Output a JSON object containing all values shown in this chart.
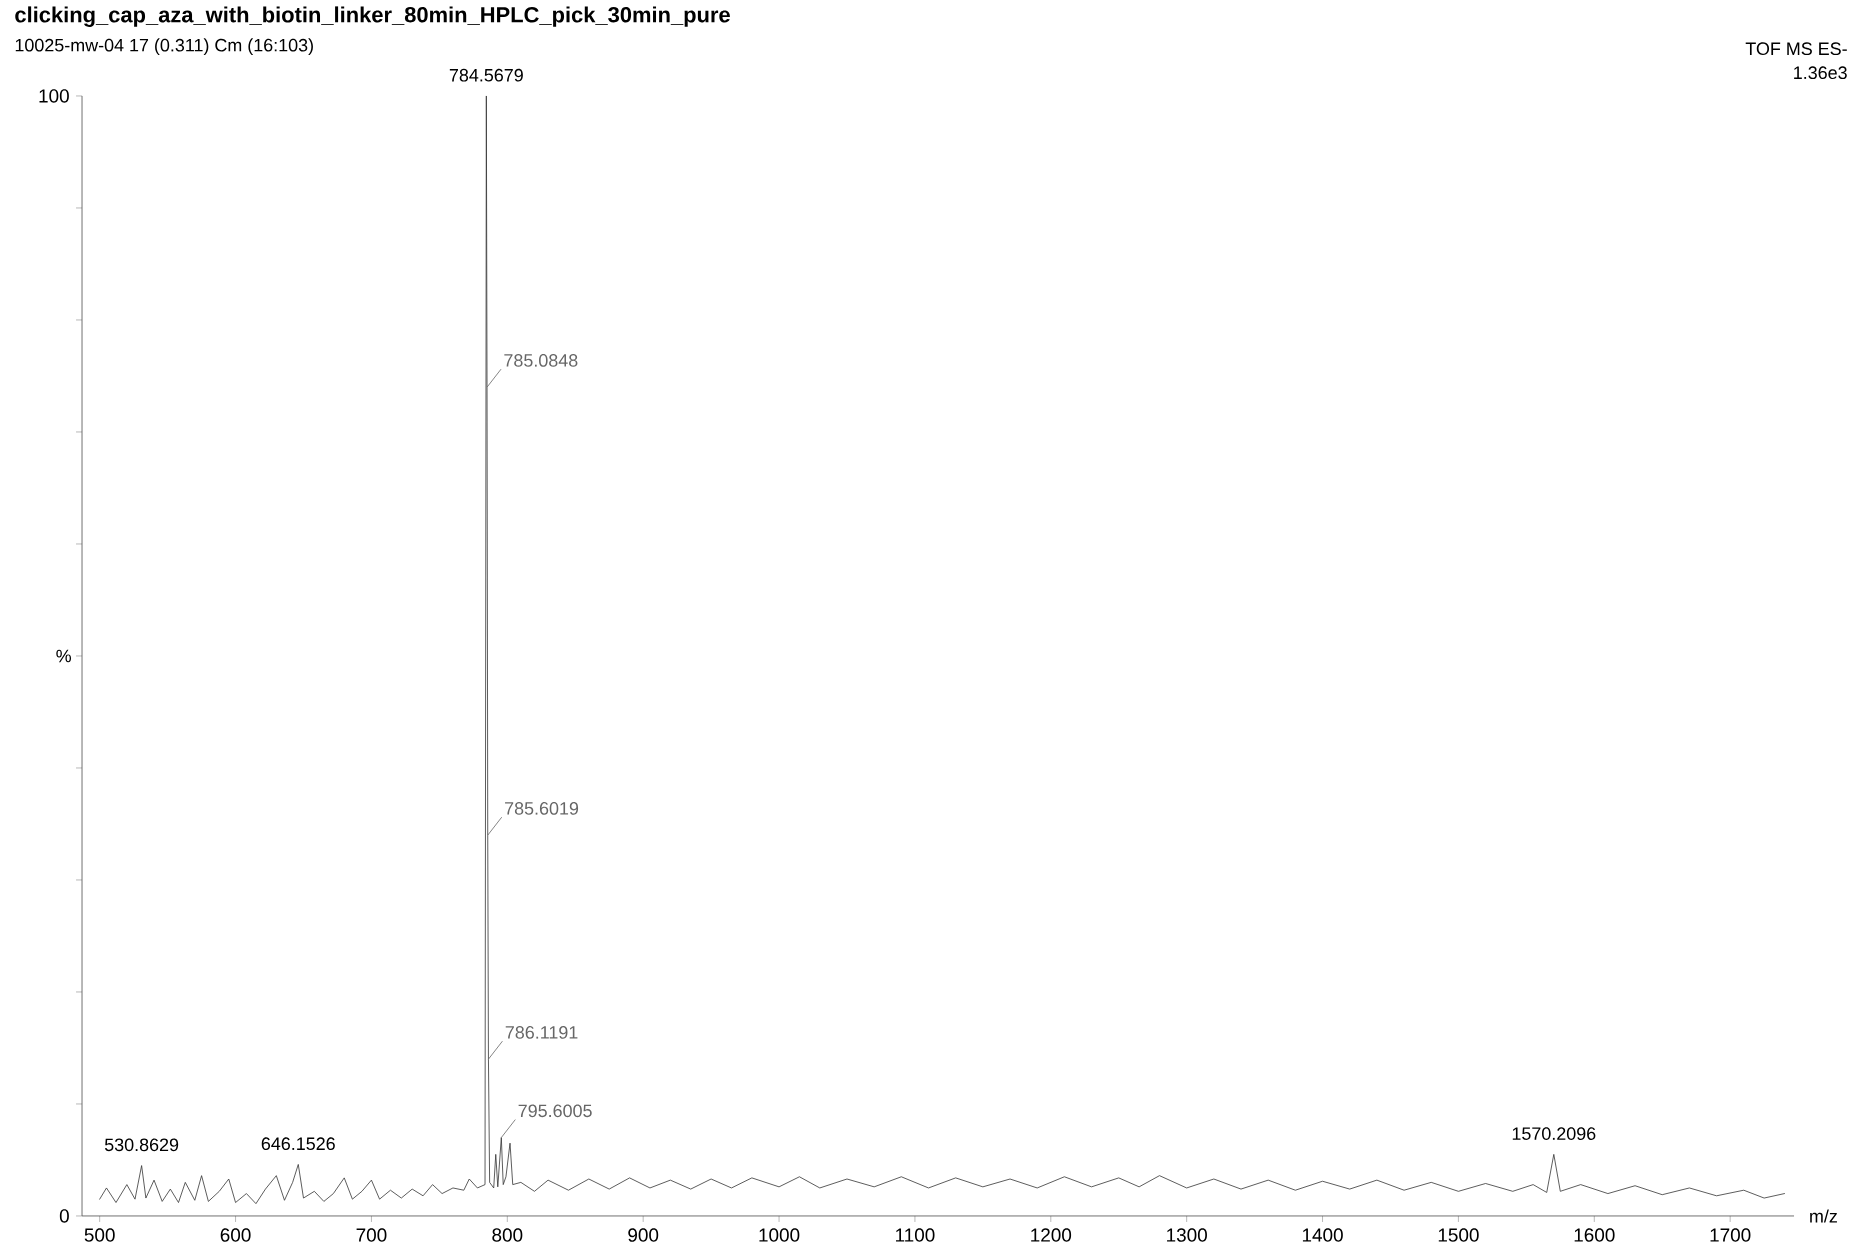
{
  "chart_data": {
    "type": "line",
    "title": "clicking_cap_aza_with_biotin_linker_80min_HPLC_pick_30min_pure",
    "subtitle": "10025-mw-04 17 (0.311) Cm (16:103)",
    "xlabel": "m/z",
    "ylabel": "%",
    "annotations": [
      "TOF MS ES-",
      "1.36e3",
      {
        "text": "784.5679",
        "x": 784.5679,
        "y": 100
      },
      {
        "text": "785.0848",
        "x": 785.0848,
        "y": 74
      },
      {
        "text": "785.6019",
        "x": 785.6019,
        "y": 34
      },
      {
        "text": "786.1191",
        "x": 786.1191,
        "y": 14
      },
      {
        "text": "795.6005",
        "x": 795.6005,
        "y": 7
      },
      {
        "text": "530.8629",
        "x": 530.8629,
        "y": 4.5
      },
      {
        "text": "646.1526",
        "x": 646.1526,
        "y": 4.6
      },
      {
        "text": "1570.2096",
        "x": 1570.2096,
        "y": 5.5
      }
    ],
    "series": [
      {
        "color": "#333333",
        "x": [
          500,
          505,
          512,
          520,
          526,
          530.8629,
          534,
          540,
          546,
          552,
          558,
          563,
          570,
          575,
          580,
          588,
          595,
          600,
          608,
          615,
          622,
          630,
          636,
          642,
          646.1526,
          650,
          658,
          665,
          672,
          680,
          686,
          693,
          700,
          706,
          714,
          722,
          730,
          738,
          745,
          752,
          760,
          768,
          772,
          778,
          783.6,
          784.5679,
          785.0848,
          785.6019,
          786.1191,
          787,
          790,
          791.5,
          793,
          795.6005,
          797,
          799,
          802,
          804,
          810,
          820,
          830,
          845,
          860,
          875,
          890,
          905,
          920,
          935,
          950,
          965,
          980,
          1000,
          1015,
          1030,
          1050,
          1070,
          1090,
          1110,
          1130,
          1150,
          1170,
          1190,
          1210,
          1230,
          1250,
          1265,
          1280,
          1300,
          1320,
          1340,
          1360,
          1380,
          1400,
          1420,
          1440,
          1460,
          1480,
          1500,
          1520,
          1540,
          1555,
          1565,
          1570.2096,
          1575,
          1590,
          1610,
          1630,
          1650,
          1670,
          1690,
          1710,
          1725,
          1740
        ],
        "values": [
          1.5,
          2.5,
          1.2,
          2.8,
          1.5,
          4.5,
          1.6,
          3.2,
          1.3,
          2.4,
          1.2,
          3.0,
          1.4,
          3.6,
          1.3,
          2.2,
          3.3,
          1.2,
          2.0,
          1.1,
          2.4,
          3.6,
          1.4,
          3.0,
          4.6,
          1.6,
          2.2,
          1.3,
          2.0,
          3.4,
          1.5,
          2.2,
          3.2,
          1.5,
          2.3,
          1.6,
          2.4,
          1.8,
          2.8,
          2.0,
          2.5,
          2.3,
          3.3,
          2.5,
          2.8,
          100,
          74,
          34,
          14,
          3,
          2.5,
          5.5,
          2.6,
          7,
          2.8,
          3.5,
          6.5,
          2.8,
          3.0,
          2.2,
          3.2,
          2.3,
          3.3,
          2.4,
          3.4,
          2.5,
          3.2,
          2.4,
          3.3,
          2.5,
          3.4,
          2.6,
          3.5,
          2.5,
          3.3,
          2.6,
          3.5,
          2.5,
          3.4,
          2.6,
          3.3,
          2.5,
          3.5,
          2.6,
          3.4,
          2.6,
          3.6,
          2.5,
          3.3,
          2.4,
          3.2,
          2.3,
          3.1,
          2.4,
          3.2,
          2.3,
          3.0,
          2.2,
          2.9,
          2.2,
          2.8,
          2.1,
          5.5,
          2.2,
          2.8,
          2.0,
          2.7,
          1.9,
          2.5,
          1.8,
          2.3,
          1.6,
          2.0
        ]
      }
    ],
    "xlim": [
      487,
      1747
    ],
    "ylim": [
      0,
      100
    ],
    "xticks": [
      500,
      600,
      700,
      800,
      900,
      1000,
      1100,
      1200,
      1300,
      1400,
      1500,
      1600,
      1700
    ],
    "yticks": [
      0,
      {
        "value": 10,
        "label": null
      },
      {
        "value": 20,
        "label": null
      },
      {
        "value": 30,
        "label": null
      },
      {
        "value": 40,
        "label": null
      },
      {
        "value": 50,
        "label": null
      },
      {
        "value": 60,
        "label": null
      },
      {
        "value": 70,
        "label": null
      },
      {
        "value": 80,
        "label": null
      },
      {
        "value": 90,
        "label": null
      },
      100
    ],
    "grid": false,
    "marker": "none",
    "line_style": "solid"
  }
}
